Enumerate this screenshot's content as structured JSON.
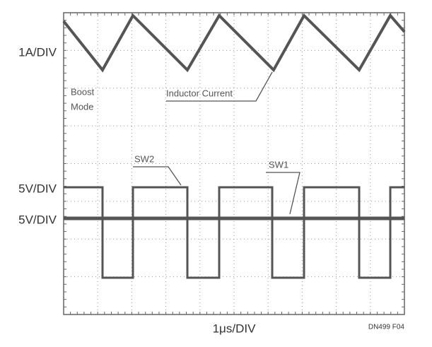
{
  "figure": {
    "y_labels": [
      "1A/DIV",
      "5V/DIV",
      "5V/DIV"
    ],
    "x_label": "1μs/DIV",
    "figure_id": "DN499 F04",
    "annotations": {
      "boost_mode": [
        "Boost",
        "Mode"
      ],
      "inductor_current": "Inductor Current",
      "sw2": "SW2",
      "sw1": "SW1"
    }
  }
}
